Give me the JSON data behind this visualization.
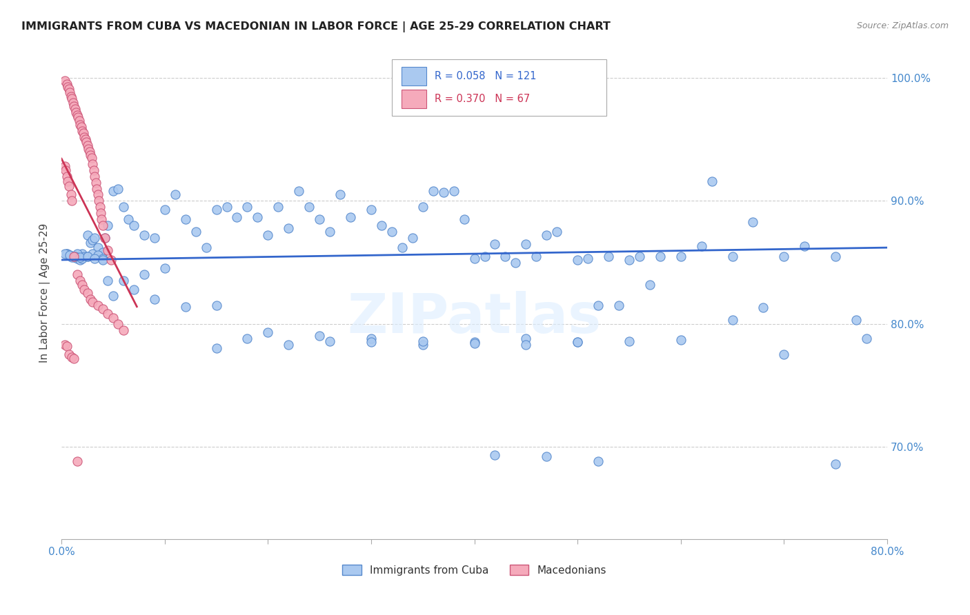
{
  "title": "IMMIGRANTS FROM CUBA VS MACEDONIAN IN LABOR FORCE | AGE 25-29 CORRELATION CHART",
  "source": "Source: ZipAtlas.com",
  "ylabel": "In Labor Force | Age 25-29",
  "x_min": 0.0,
  "x_max": 0.8,
  "y_min": 0.625,
  "y_max": 1.025,
  "x_tick_positions": [
    0.0,
    0.1,
    0.2,
    0.3,
    0.4,
    0.5,
    0.6,
    0.7,
    0.8
  ],
  "x_tick_labels": [
    "0.0%",
    "",
    "",
    "",
    "",
    "",
    "",
    "",
    "80.0%"
  ],
  "y_ticks": [
    0.7,
    0.8,
    0.9,
    1.0
  ],
  "y_tick_labels": [
    "70.0%",
    "80.0%",
    "90.0%",
    "100.0%"
  ],
  "legend_labels": [
    "Immigrants from Cuba",
    "Macedonians"
  ],
  "cuba_color": "#aac9f0",
  "cuba_edge_color": "#5588cc",
  "mace_color": "#f5aabb",
  "mace_edge_color": "#cc5577",
  "cuba_line_color": "#3366cc",
  "mace_line_color": "#cc3355",
  "watermark": "ZIPatlas",
  "R_cuba": 0.058,
  "N_cuba": 121,
  "R_mace": 0.37,
  "N_mace": 67,
  "cuba_scatter_x": [
    0.005,
    0.008,
    0.01,
    0.012,
    0.015,
    0.018,
    0.02,
    0.022,
    0.025,
    0.028,
    0.03,
    0.032,
    0.035,
    0.038,
    0.04,
    0.042,
    0.045,
    0.05,
    0.055,
    0.06,
    0.065,
    0.07,
    0.08,
    0.09,
    0.1,
    0.11,
    0.12,
    0.13,
    0.14,
    0.15,
    0.16,
    0.17,
    0.18,
    0.19,
    0.2,
    0.21,
    0.22,
    0.23,
    0.24,
    0.25,
    0.26,
    0.27,
    0.28,
    0.3,
    0.31,
    0.32,
    0.33,
    0.34,
    0.35,
    0.36,
    0.37,
    0.38,
    0.39,
    0.4,
    0.41,
    0.42,
    0.43,
    0.44,
    0.45,
    0.46,
    0.47,
    0.48,
    0.5,
    0.51,
    0.52,
    0.53,
    0.54,
    0.55,
    0.56,
    0.57,
    0.58,
    0.6,
    0.62,
    0.63,
    0.65,
    0.67,
    0.68,
    0.7,
    0.72,
    0.75,
    0.77,
    0.005,
    0.01,
    0.015,
    0.02,
    0.025,
    0.03,
    0.035,
    0.04,
    0.045,
    0.05,
    0.07,
    0.09,
    0.12,
    0.15,
    0.18,
    0.22,
    0.26,
    0.3,
    0.35,
    0.4,
    0.45,
    0.5,
    0.55,
    0.6,
    0.65,
    0.7,
    0.75,
    0.78,
    0.003,
    0.008,
    0.013,
    0.018,
    0.025,
    0.032,
    0.04,
    0.06,
    0.08,
    0.1,
    0.15,
    0.2,
    0.25,
    0.3,
    0.35,
    0.4,
    0.45,
    0.5,
    0.42,
    0.47,
    0.52
  ],
  "cuba_scatter_y": [
    0.857,
    0.856,
    0.855,
    0.854,
    0.853,
    0.852,
    0.857,
    0.855,
    0.872,
    0.866,
    0.868,
    0.87,
    0.862,
    0.855,
    0.858,
    0.87,
    0.88,
    0.908,
    0.91,
    0.895,
    0.885,
    0.88,
    0.872,
    0.87,
    0.893,
    0.905,
    0.885,
    0.875,
    0.862,
    0.893,
    0.895,
    0.887,
    0.895,
    0.887,
    0.872,
    0.895,
    0.878,
    0.908,
    0.895,
    0.885,
    0.875,
    0.905,
    0.887,
    0.893,
    0.88,
    0.875,
    0.862,
    0.87,
    0.895,
    0.908,
    0.907,
    0.908,
    0.885,
    0.853,
    0.855,
    0.865,
    0.855,
    0.85,
    0.865,
    0.855,
    0.872,
    0.875,
    0.852,
    0.853,
    0.815,
    0.855,
    0.815,
    0.852,
    0.855,
    0.832,
    0.855,
    0.855,
    0.863,
    0.916,
    0.855,
    0.883,
    0.813,
    0.855,
    0.863,
    0.855,
    0.803,
    0.857,
    0.854,
    0.857,
    0.853,
    0.855,
    0.857,
    0.856,
    0.853,
    0.835,
    0.823,
    0.828,
    0.82,
    0.814,
    0.815,
    0.788,
    0.783,
    0.786,
    0.788,
    0.783,
    0.785,
    0.788,
    0.785,
    0.786,
    0.787,
    0.803,
    0.775,
    0.686,
    0.788,
    0.857,
    0.856,
    0.855,
    0.854,
    0.855,
    0.853,
    0.852,
    0.835,
    0.84,
    0.845,
    0.78,
    0.793,
    0.79,
    0.785,
    0.786,
    0.784,
    0.783,
    0.785,
    0.693,
    0.692,
    0.688
  ],
  "mace_scatter_x": [
    0.003,
    0.005,
    0.006,
    0.007,
    0.008,
    0.009,
    0.01,
    0.011,
    0.012,
    0.013,
    0.014,
    0.015,
    0.016,
    0.017,
    0.018,
    0.019,
    0.02,
    0.021,
    0.022,
    0.023,
    0.024,
    0.025,
    0.026,
    0.027,
    0.028,
    0.029,
    0.03,
    0.031,
    0.032,
    0.033,
    0.034,
    0.035,
    0.036,
    0.037,
    0.038,
    0.039,
    0.04,
    0.042,
    0.045,
    0.048,
    0.003,
    0.004,
    0.005,
    0.006,
    0.007,
    0.009,
    0.01,
    0.012,
    0.015,
    0.018,
    0.02,
    0.022,
    0.025,
    0.028,
    0.03,
    0.035,
    0.04,
    0.045,
    0.05,
    0.055,
    0.06,
    0.003,
    0.005,
    0.007,
    0.01,
    0.012,
    0.015
  ],
  "mace_scatter_y": [
    0.998,
    0.995,
    0.993,
    0.991,
    0.988,
    0.985,
    0.983,
    0.98,
    0.977,
    0.975,
    0.972,
    0.97,
    0.968,
    0.965,
    0.962,
    0.96,
    0.957,
    0.955,
    0.952,
    0.95,
    0.948,
    0.945,
    0.942,
    0.94,
    0.937,
    0.935,
    0.93,
    0.925,
    0.92,
    0.915,
    0.91,
    0.905,
    0.9,
    0.895,
    0.89,
    0.885,
    0.88,
    0.87,
    0.86,
    0.852,
    0.928,
    0.925,
    0.92,
    0.916,
    0.912,
    0.905,
    0.9,
    0.855,
    0.84,
    0.835,
    0.832,
    0.828,
    0.825,
    0.82,
    0.818,
    0.815,
    0.812,
    0.808,
    0.805,
    0.8,
    0.795,
    0.783,
    0.782,
    0.775,
    0.773,
    0.772,
    0.688
  ]
}
